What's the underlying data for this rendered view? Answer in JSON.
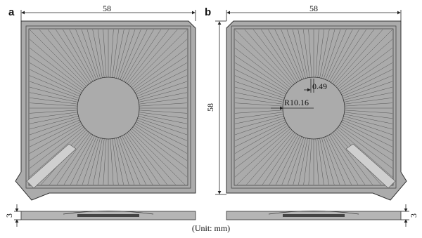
{
  "panels": [
    {
      "label": "a",
      "width_dim": "58",
      "thickness_dim": "3"
    },
    {
      "label": "b",
      "width_dim": "58",
      "height_dim": "58",
      "hole_dim": "0.49",
      "radius_dim": "R10.16",
      "thickness_dim": "3"
    }
  ],
  "unit_note": "(Unit: mm)"
}
